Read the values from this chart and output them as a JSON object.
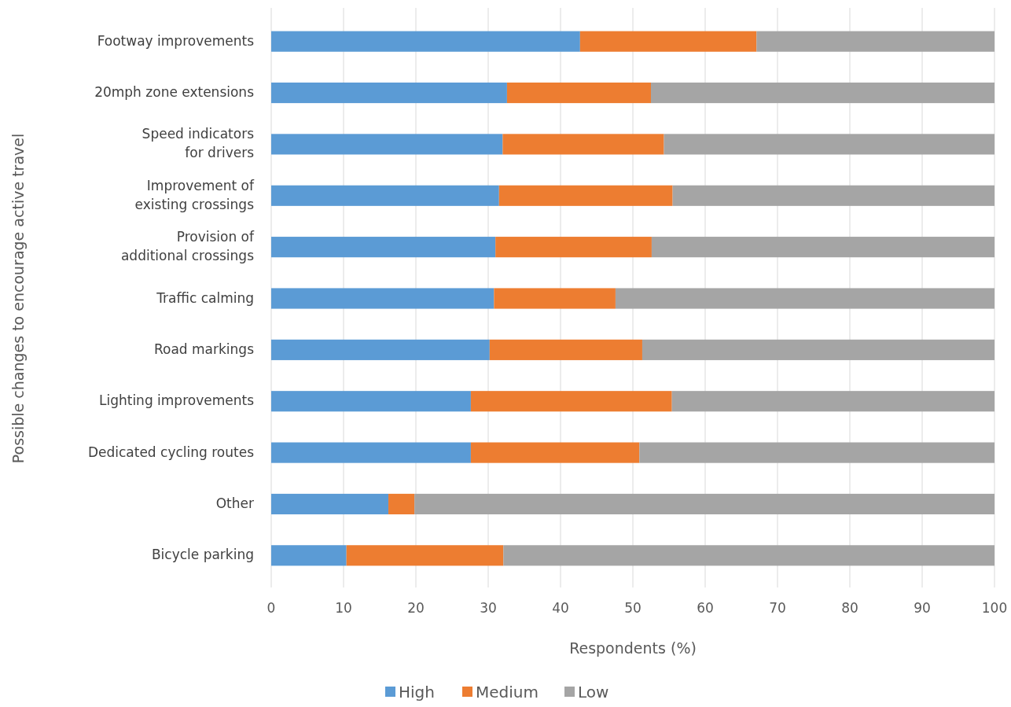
{
  "chart_data": {
    "type": "bar",
    "orientation": "horizontal",
    "stacked": true,
    "xlabel": "Respondents (%)",
    "ylabel": "Possible changes to encourage active travel",
    "categories": [
      "Footway improvements",
      "20mph zone extensions",
      "Speed indicators\nfor drivers",
      "Improvement of\nexisting crossings",
      "Provision of\nadditional crossings",
      "Traffic calming",
      "Road markings",
      "Lighting improvements",
      "Dedicated cycling routes",
      "Other",
      "Bicycle parking"
    ],
    "series": [
      {
        "name": "High",
        "color": "#5b9bd5",
        "values": [
          42.7,
          32.6,
          32.0,
          31.5,
          31.0,
          30.8,
          30.2,
          27.6,
          27.6,
          16.2,
          10.4
        ]
      },
      {
        "name": "Medium",
        "color": "#ed7d31",
        "values": [
          24.4,
          19.9,
          22.3,
          24.0,
          21.6,
          16.8,
          21.1,
          27.8,
          23.3,
          3.6,
          21.7
        ]
      },
      {
        "name": "Low",
        "color": "#a5a5a5",
        "values": [
          32.9,
          47.5,
          45.7,
          44.5,
          47.4,
          52.4,
          48.7,
          44.6,
          49.1,
          80.2,
          67.9
        ]
      }
    ],
    "xlim": [
      0,
      100
    ],
    "xticks": [
      0,
      10,
      20,
      30,
      40,
      50,
      60,
      70,
      80,
      90,
      100
    ],
    "grid": "x",
    "legend": "bottom"
  }
}
